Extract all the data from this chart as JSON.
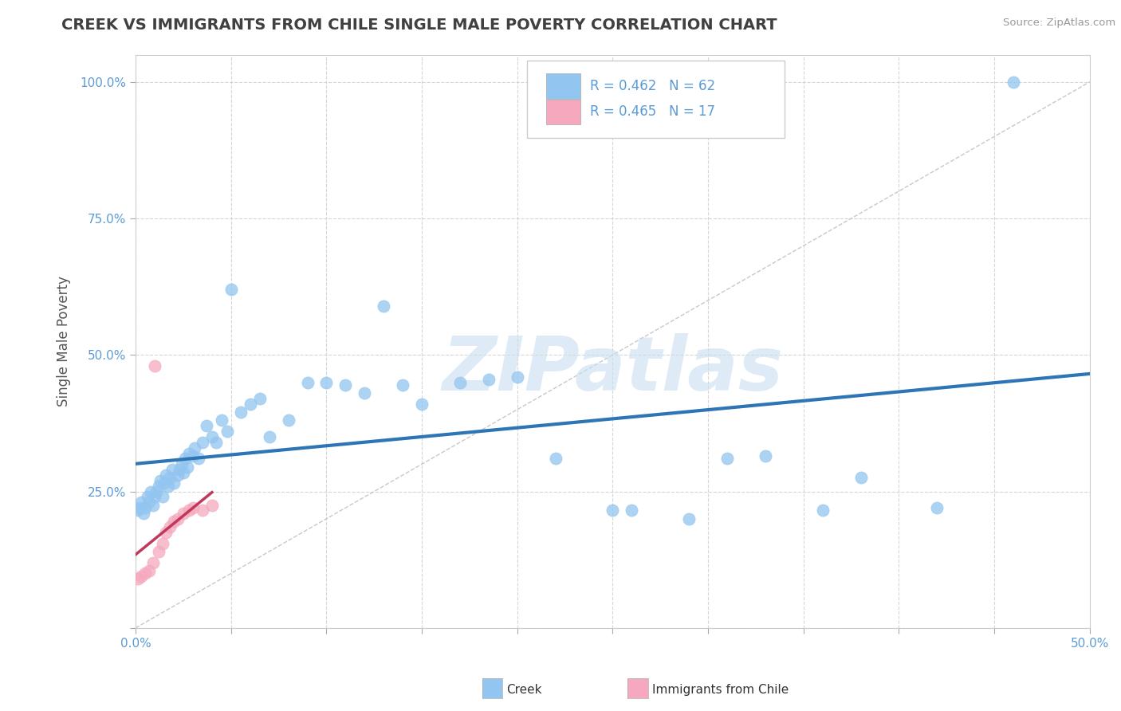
{
  "title": "CREEK VS IMMIGRANTS FROM CHILE SINGLE MALE POVERTY CORRELATION CHART",
  "source": "Source: ZipAtlas.com",
  "ylabel": "Single Male Poverty",
  "xlim": [
    0.0,
    0.5
  ],
  "ylim": [
    0.0,
    1.05
  ],
  "xtick_vals": [
    0.0,
    0.05,
    0.1,
    0.15,
    0.2,
    0.25,
    0.3,
    0.35,
    0.4,
    0.45,
    0.5
  ],
  "ytick_vals": [
    0.0,
    0.25,
    0.5,
    0.75,
    1.0
  ],
  "creek_color": "#92C5F0",
  "chile_color": "#F5A8BE",
  "creek_line_color": "#2E75B6",
  "chile_line_color": "#C0395A",
  "diag_color": "#C8C8C8",
  "watermark": "ZIPatlas",
  "legend_R1": "R = 0.462",
  "legend_N1": "N = 62",
  "legend_R2": "R = 0.465",
  "legend_N2": "N = 17",
  "creek_x": [
    0.001,
    0.002,
    0.003,
    0.004,
    0.005,
    0.006,
    0.007,
    0.008,
    0.009,
    0.01,
    0.011,
    0.012,
    0.013,
    0.014,
    0.015,
    0.016,
    0.017,
    0.018,
    0.019,
    0.02,
    0.022,
    0.023,
    0.024,
    0.025,
    0.026,
    0.027,
    0.028,
    0.03,
    0.031,
    0.033,
    0.035,
    0.037,
    0.04,
    0.042,
    0.045,
    0.048,
    0.05,
    0.055,
    0.06,
    0.065,
    0.07,
    0.08,
    0.09,
    0.1,
    0.11,
    0.12,
    0.13,
    0.14,
    0.15,
    0.17,
    0.185,
    0.2,
    0.22,
    0.25,
    0.26,
    0.29,
    0.31,
    0.33,
    0.36,
    0.38,
    0.42,
    0.46
  ],
  "creek_y": [
    0.215,
    0.22,
    0.23,
    0.21,
    0.22,
    0.24,
    0.23,
    0.25,
    0.225,
    0.24,
    0.25,
    0.26,
    0.27,
    0.24,
    0.265,
    0.28,
    0.26,
    0.275,
    0.29,
    0.265,
    0.28,
    0.29,
    0.3,
    0.285,
    0.31,
    0.295,
    0.32,
    0.315,
    0.33,
    0.31,
    0.34,
    0.37,
    0.35,
    0.34,
    0.38,
    0.36,
    0.62,
    0.395,
    0.41,
    0.42,
    0.35,
    0.38,
    0.45,
    0.45,
    0.445,
    0.43,
    0.59,
    0.445,
    0.41,
    0.45,
    0.455,
    0.46,
    0.31,
    0.215,
    0.215,
    0.2,
    0.31,
    0.315,
    0.215,
    0.275,
    0.22,
    1.0
  ],
  "chile_x": [
    0.001,
    0.003,
    0.005,
    0.007,
    0.009,
    0.01,
    0.012,
    0.014,
    0.016,
    0.018,
    0.02,
    0.022,
    0.025,
    0.028,
    0.03,
    0.035,
    0.04
  ],
  "chile_y": [
    0.09,
    0.095,
    0.1,
    0.105,
    0.12,
    0.48,
    0.14,
    0.155,
    0.175,
    0.185,
    0.195,
    0.2,
    0.21,
    0.215,
    0.22,
    0.215,
    0.225
  ]
}
